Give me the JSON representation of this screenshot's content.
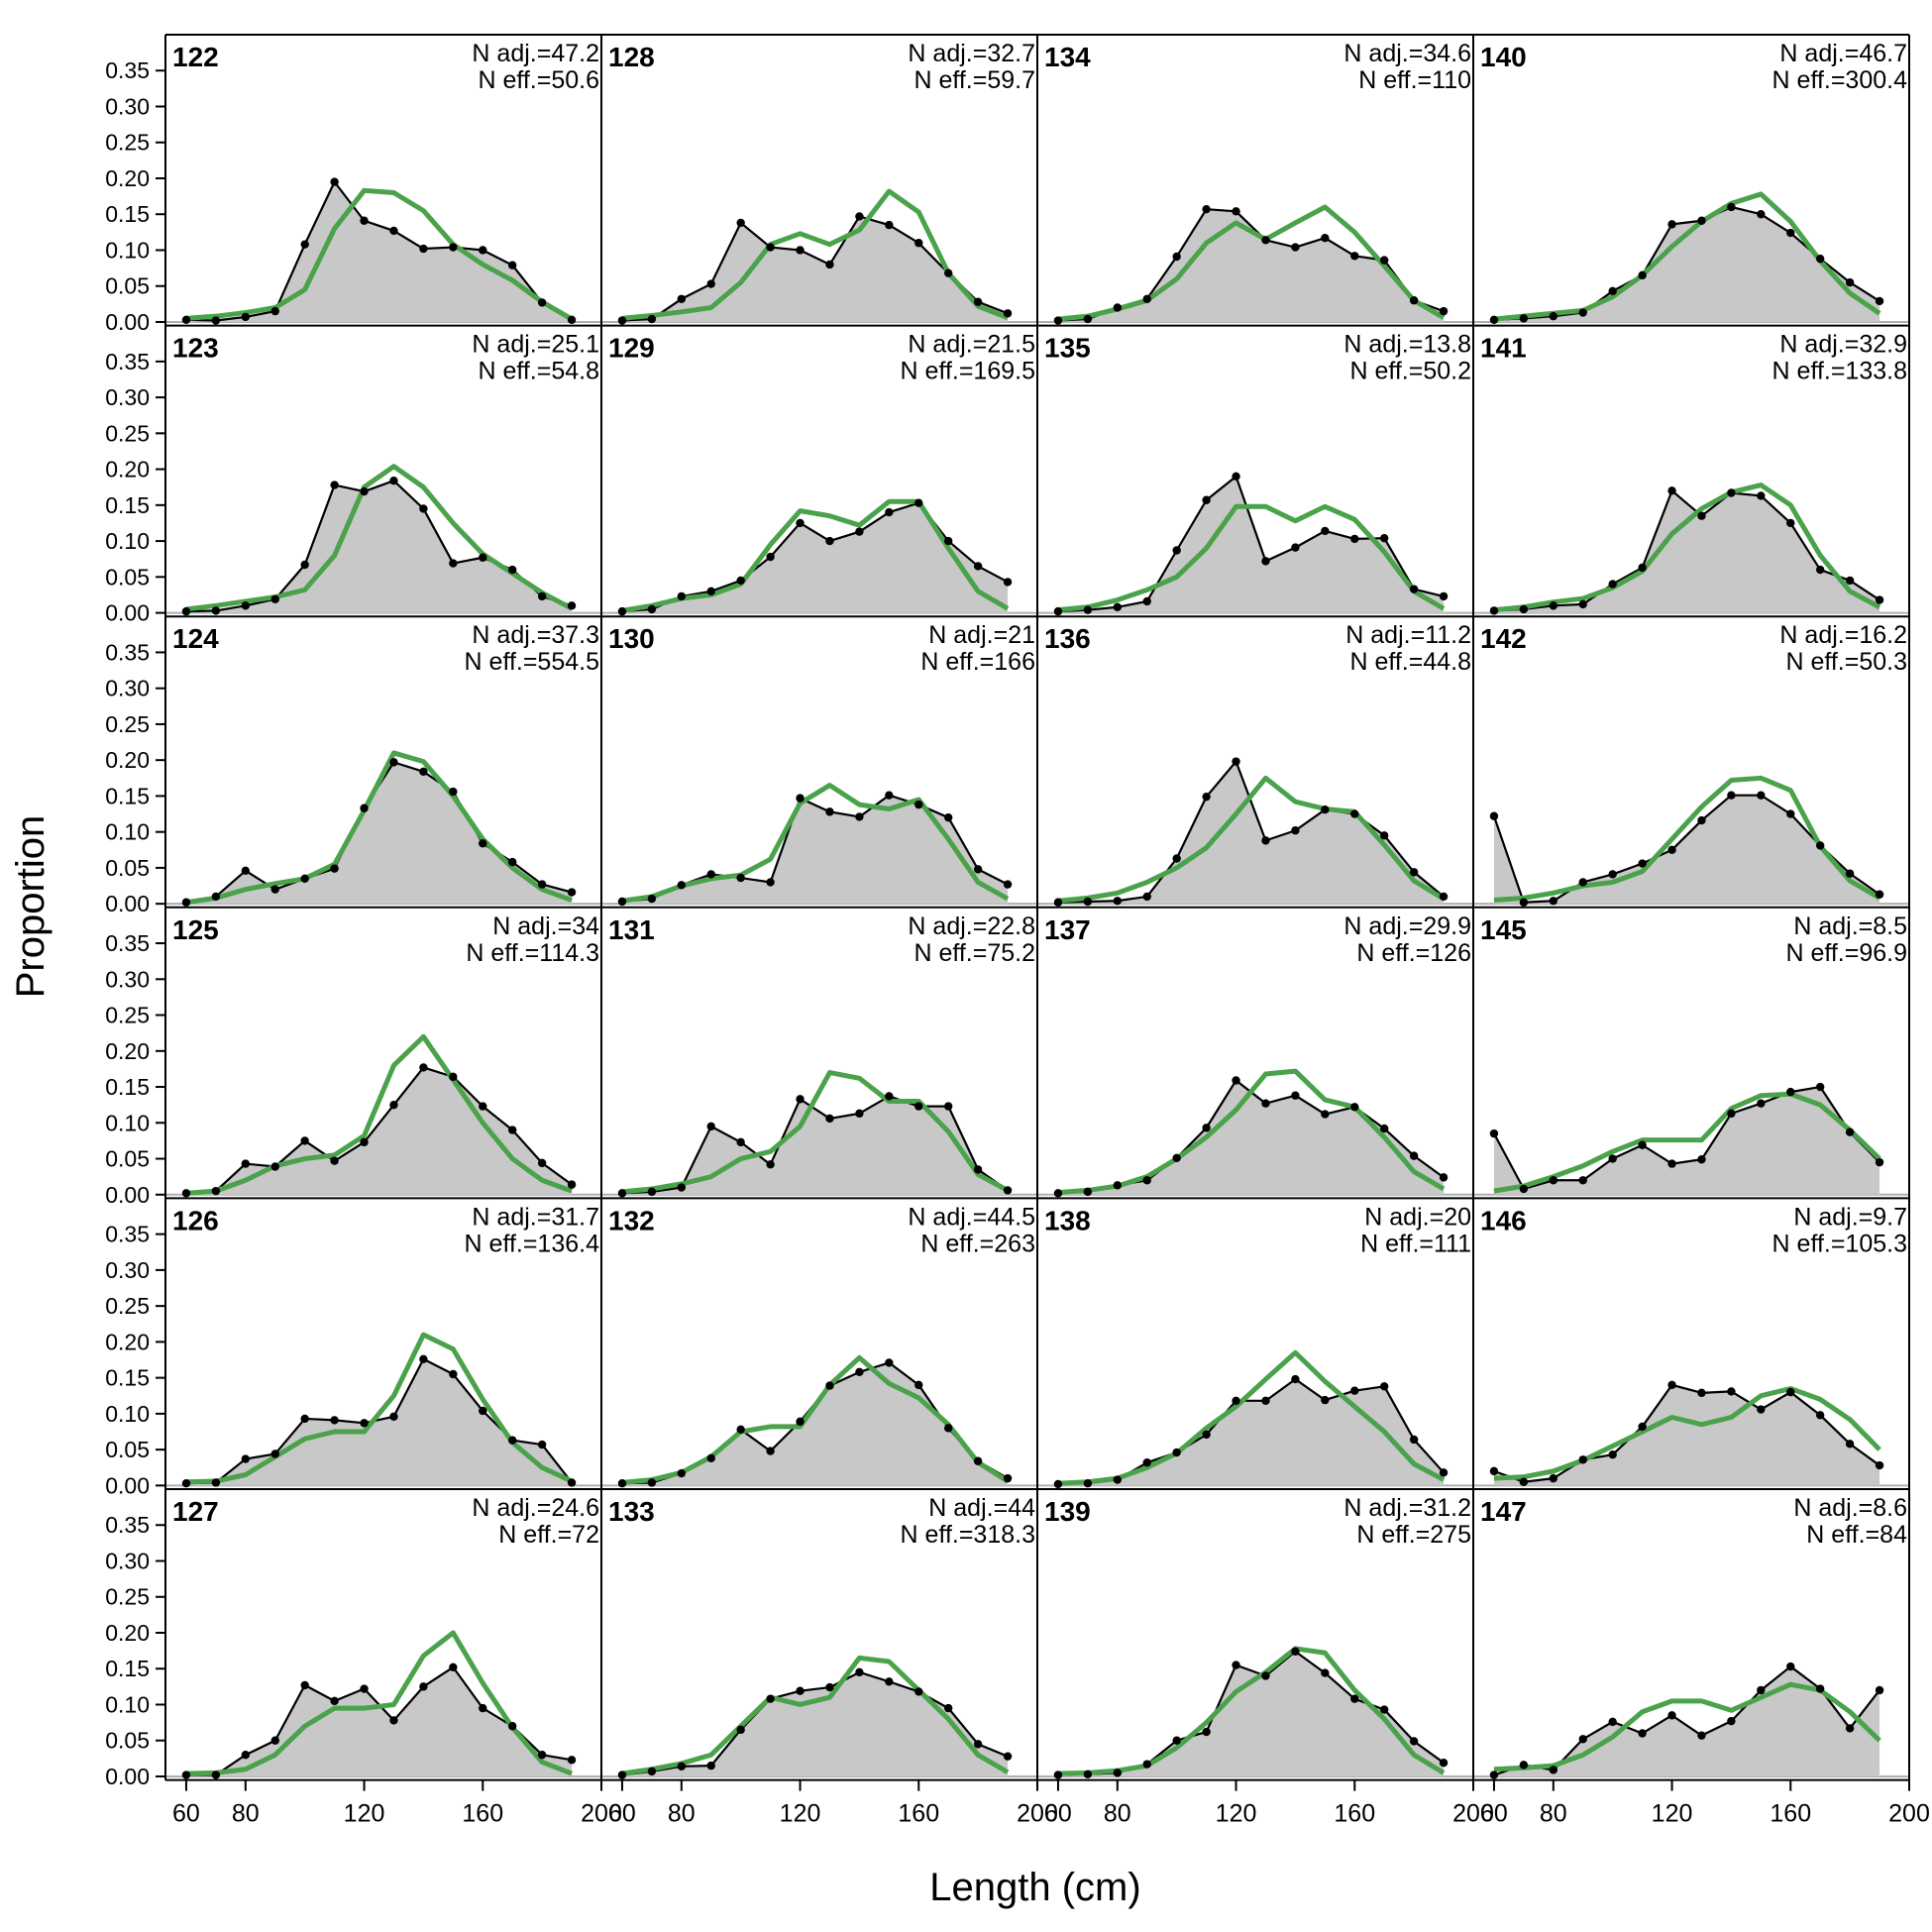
{
  "chart_data": {
    "type": "area",
    "xlabel": "Length (cm)",
    "ylabel": "Proportion",
    "xlim": [
      53,
      200
    ],
    "ylim": [
      -0.005,
      0.4
    ],
    "x_ticks": [
      60,
      80,
      120,
      160,
      200
    ],
    "y_ticks": [
      "0.00",
      "0.05",
      "0.10",
      "0.15",
      "0.20",
      "0.25",
      "0.30",
      "0.35"
    ],
    "x": [
      60,
      70,
      80,
      90,
      100,
      110,
      120,
      130,
      140,
      150,
      160,
      170,
      180,
      190
    ],
    "colors": {
      "observed_fill": "#c8c8c8",
      "observed_line": "#000000",
      "expected_line": "#4aa24a",
      "zero_line": "#b0b0b0"
    },
    "panels": [
      {
        "id": "122",
        "n_adj": "N adj.=47.2",
        "n_eff": "N eff.=50.6",
        "observed": [
          0.003,
          0.002,
          0.007,
          0.015,
          0.108,
          0.195,
          0.141,
          0.127,
          0.102,
          0.104,
          0.1,
          0.079,
          0.027,
          0.003
        ],
        "expected": [
          0.005,
          0.008,
          0.013,
          0.02,
          0.045,
          0.13,
          0.183,
          0.18,
          0.155,
          0.108,
          0.08,
          0.058,
          0.028,
          0.004
        ]
      },
      {
        "id": "128",
        "n_adj": "N adj.=32.7",
        "n_eff": "N eff.=59.7",
        "observed": [
          0.002,
          0.004,
          0.032,
          0.053,
          0.138,
          0.104,
          0.1,
          0.08,
          0.147,
          0.135,
          0.11,
          0.068,
          0.028,
          0.012
        ],
        "expected": [
          0.005,
          0.009,
          0.014,
          0.02,
          0.055,
          0.108,
          0.123,
          0.108,
          0.128,
          0.182,
          0.153,
          0.068,
          0.022,
          0.006
        ]
      },
      {
        "id": "134",
        "n_adj": "N adj.=34.6",
        "n_eff": "N eff.=110",
        "observed": [
          0.002,
          0.004,
          0.02,
          0.032,
          0.091,
          0.157,
          0.154,
          0.114,
          0.104,
          0.117,
          0.092,
          0.086,
          0.03,
          0.015
        ],
        "expected": [
          0.004,
          0.008,
          0.018,
          0.03,
          0.06,
          0.11,
          0.138,
          0.115,
          0.138,
          0.16,
          0.125,
          0.078,
          0.03,
          0.006
        ]
      },
      {
        "id": "140",
        "n_adj": "N adj.=46.7",
        "n_eff": "N eff.=300.4",
        "observed": [
          0.003,
          0.005,
          0.008,
          0.013,
          0.043,
          0.065,
          0.136,
          0.141,
          0.16,
          0.15,
          0.124,
          0.088,
          0.055,
          0.029
        ],
        "expected": [
          0.004,
          0.008,
          0.012,
          0.016,
          0.035,
          0.065,
          0.105,
          0.14,
          0.165,
          0.178,
          0.14,
          0.085,
          0.04,
          0.012
        ]
      },
      {
        "id": "123",
        "n_adj": "N adj.=25.1",
        "n_eff": "N eff.=54.8",
        "observed": [
          0.002,
          0.003,
          0.01,
          0.019,
          0.067,
          0.178,
          0.169,
          0.184,
          0.145,
          0.069,
          0.077,
          0.06,
          0.023,
          0.01
        ],
        "expected": [
          0.005,
          0.01,
          0.016,
          0.022,
          0.032,
          0.08,
          0.175,
          0.204,
          0.175,
          0.125,
          0.082,
          0.055,
          0.028,
          0.006
        ]
      },
      {
        "id": "129",
        "n_adj": "N adj.=21.5",
        "n_eff": "N eff.=169.5",
        "observed": [
          0.002,
          0.005,
          0.023,
          0.03,
          0.045,
          0.078,
          0.125,
          0.1,
          0.113,
          0.14,
          0.153,
          0.1,
          0.065,
          0.043
        ],
        "expected": [
          0.003,
          0.01,
          0.02,
          0.025,
          0.04,
          0.095,
          0.142,
          0.135,
          0.122,
          0.155,
          0.155,
          0.09,
          0.03,
          0.006
        ]
      },
      {
        "id": "135",
        "n_adj": "N adj.=13.8",
        "n_eff": "N eff.=50.2",
        "observed": [
          0.002,
          0.004,
          0.008,
          0.016,
          0.087,
          0.157,
          0.19,
          0.072,
          0.091,
          0.114,
          0.103,
          0.104,
          0.033,
          0.023
        ],
        "expected": [
          0.004,
          0.008,
          0.018,
          0.032,
          0.05,
          0.09,
          0.148,
          0.148,
          0.128,
          0.148,
          0.13,
          0.085,
          0.03,
          0.006
        ]
      },
      {
        "id": "141",
        "n_adj": "N adj.=32.9",
        "n_eff": "N eff.=133.8",
        "observed": [
          0.003,
          0.005,
          0.01,
          0.012,
          0.04,
          0.063,
          0.17,
          0.135,
          0.167,
          0.163,
          0.125,
          0.06,
          0.045,
          0.018
        ],
        "expected": [
          0.004,
          0.008,
          0.015,
          0.02,
          0.035,
          0.058,
          0.11,
          0.145,
          0.168,
          0.178,
          0.15,
          0.08,
          0.03,
          0.008
        ]
      },
      {
        "id": "124",
        "n_adj": "N adj.=37.3",
        "n_eff": "N eff.=554.5",
        "observed": [
          0.002,
          0.01,
          0.046,
          0.02,
          0.035,
          0.049,
          0.133,
          0.197,
          0.184,
          0.156,
          0.084,
          0.058,
          0.027,
          0.016
        ],
        "expected": [
          0.002,
          0.008,
          0.02,
          0.028,
          0.035,
          0.055,
          0.13,
          0.21,
          0.198,
          0.15,
          0.09,
          0.05,
          0.02,
          0.005
        ]
      },
      {
        "id": "130",
        "n_adj": "N adj.=21",
        "n_eff": "N eff.=166",
        "observed": [
          0.003,
          0.007,
          0.026,
          0.041,
          0.036,
          0.03,
          0.147,
          0.128,
          0.121,
          0.151,
          0.138,
          0.12,
          0.048,
          0.027
        ],
        "expected": [
          0.004,
          0.01,
          0.025,
          0.035,
          0.04,
          0.062,
          0.14,
          0.165,
          0.138,
          0.132,
          0.145,
          0.09,
          0.03,
          0.007
        ]
      },
      {
        "id": "136",
        "n_adj": "N adj.=11.2",
        "n_eff": "N eff.=44.8",
        "observed": [
          0.002,
          0.003,
          0.004,
          0.01,
          0.063,
          0.149,
          0.198,
          0.088,
          0.102,
          0.131,
          0.125,
          0.095,
          0.044,
          0.01
        ],
        "expected": [
          0.004,
          0.008,
          0.015,
          0.03,
          0.05,
          0.078,
          0.125,
          0.175,
          0.142,
          0.132,
          0.128,
          0.082,
          0.032,
          0.007
        ]
      },
      {
        "id": "142",
        "n_adj": "N adj.=16.2",
        "n_eff": "N eff.=50.3",
        "observed": [
          0.122,
          0.002,
          0.004,
          0.03,
          0.041,
          0.056,
          0.075,
          0.116,
          0.151,
          0.151,
          0.125,
          0.081,
          0.042,
          0.013
        ],
        "expected": [
          0.005,
          0.008,
          0.015,
          0.025,
          0.03,
          0.045,
          0.09,
          0.135,
          0.172,
          0.175,
          0.158,
          0.08,
          0.032,
          0.008
        ]
      },
      {
        "id": "125",
        "n_adj": "N adj.=34",
        "n_eff": "N eff.=114.3",
        "observed": [
          0.002,
          0.005,
          0.043,
          0.039,
          0.075,
          0.047,
          0.073,
          0.125,
          0.177,
          0.164,
          0.123,
          0.09,
          0.044,
          0.014
        ],
        "expected": [
          0.002,
          0.005,
          0.02,
          0.04,
          0.05,
          0.055,
          0.082,
          0.18,
          0.22,
          0.16,
          0.1,
          0.05,
          0.02,
          0.005
        ]
      },
      {
        "id": "131",
        "n_adj": "N adj.=22.8",
        "n_eff": "N eff.=75.2",
        "observed": [
          0.002,
          0.004,
          0.01,
          0.095,
          0.073,
          0.042,
          0.133,
          0.106,
          0.113,
          0.137,
          0.123,
          0.123,
          0.035,
          0.006
        ],
        "expected": [
          0.004,
          0.008,
          0.015,
          0.025,
          0.05,
          0.06,
          0.095,
          0.17,
          0.162,
          0.13,
          0.13,
          0.088,
          0.028,
          0.006
        ]
      },
      {
        "id": "137",
        "n_adj": "N adj.=29.9",
        "n_eff": "N eff.=126",
        "observed": [
          0.002,
          0.004,
          0.013,
          0.02,
          0.051,
          0.093,
          0.159,
          0.127,
          0.138,
          0.112,
          0.122,
          0.092,
          0.054,
          0.024
        ],
        "expected": [
          0.003,
          0.006,
          0.012,
          0.025,
          0.05,
          0.08,
          0.118,
          0.168,
          0.172,
          0.132,
          0.122,
          0.08,
          0.032,
          0.008
        ]
      },
      {
        "id": "145",
        "n_adj": "N adj.=8.5",
        "n_eff": "N eff.=96.9",
        "observed": [
          0.085,
          0.008,
          0.02,
          0.02,
          0.05,
          0.069,
          0.043,
          0.049,
          0.113,
          0.127,
          0.143,
          0.15,
          0.087,
          0.045
        ],
        "expected": [
          0.005,
          0.012,
          0.025,
          0.04,
          0.06,
          0.076,
          0.076,
          0.076,
          0.12,
          0.138,
          0.14,
          0.125,
          0.09,
          0.05
        ]
      },
      {
        "id": "126",
        "n_adj": "N adj.=31.7",
        "n_eff": "N eff.=136.4",
        "observed": [
          0.003,
          0.004,
          0.037,
          0.044,
          0.093,
          0.091,
          0.087,
          0.096,
          0.176,
          0.155,
          0.104,
          0.063,
          0.057,
          0.004
        ],
        "expected": [
          0.005,
          0.006,
          0.015,
          0.04,
          0.065,
          0.075,
          0.075,
          0.125,
          0.21,
          0.19,
          0.12,
          0.06,
          0.025,
          0.006
        ]
      },
      {
        "id": "132",
        "n_adj": "N adj.=44.5",
        "n_eff": "N eff.=263",
        "observed": [
          0.003,
          0.004,
          0.017,
          0.038,
          0.078,
          0.048,
          0.089,
          0.139,
          0.158,
          0.171,
          0.14,
          0.08,
          0.034,
          0.01
        ],
        "expected": [
          0.004,
          0.008,
          0.018,
          0.04,
          0.075,
          0.082,
          0.082,
          0.14,
          0.178,
          0.142,
          0.122,
          0.085,
          0.032,
          0.006
        ]
      },
      {
        "id": "138",
        "n_adj": "N adj.=20",
        "n_eff": "N eff.=111",
        "observed": [
          0.002,
          0.003,
          0.008,
          0.032,
          0.046,
          0.071,
          0.118,
          0.118,
          0.148,
          0.119,
          0.132,
          0.138,
          0.064,
          0.018
        ],
        "expected": [
          0.003,
          0.005,
          0.01,
          0.025,
          0.045,
          0.08,
          0.11,
          0.148,
          0.185,
          0.145,
          0.11,
          0.075,
          0.03,
          0.008
        ]
      },
      {
        "id": "146",
        "n_adj": "N adj.=9.7",
        "n_eff": "N eff.=105.3",
        "observed": [
          0.02,
          0.005,
          0.01,
          0.036,
          0.043,
          0.082,
          0.14,
          0.129,
          0.131,
          0.106,
          0.13,
          0.098,
          0.058,
          0.028
        ],
        "expected": [
          0.01,
          0.012,
          0.02,
          0.035,
          0.055,
          0.075,
          0.095,
          0.085,
          0.095,
          0.125,
          0.135,
          0.12,
          0.092,
          0.05
        ]
      },
      {
        "id": "127",
        "n_adj": "N adj.=24.6",
        "n_eff": "N eff.=72",
        "observed": [
          0.002,
          0.002,
          0.03,
          0.05,
          0.127,
          0.105,
          0.122,
          0.078,
          0.125,
          0.152,
          0.095,
          0.07,
          0.03,
          0.023
        ],
        "expected": [
          0.004,
          0.005,
          0.01,
          0.03,
          0.07,
          0.095,
          0.095,
          0.1,
          0.168,
          0.2,
          0.13,
          0.068,
          0.02,
          0.004
        ]
      },
      {
        "id": "133",
        "n_adj": "N adj.=44",
        "n_eff": "N eff.=318.3",
        "observed": [
          0.002,
          0.007,
          0.014,
          0.015,
          0.065,
          0.108,
          0.119,
          0.124,
          0.145,
          0.132,
          0.118,
          0.095,
          0.045,
          0.028
        ],
        "expected": [
          0.004,
          0.01,
          0.018,
          0.03,
          0.07,
          0.11,
          0.1,
          0.11,
          0.165,
          0.16,
          0.12,
          0.08,
          0.03,
          0.006
        ]
      },
      {
        "id": "139",
        "n_adj": "N adj.=31.2",
        "n_eff": "N eff.=275",
        "observed": [
          0.002,
          0.003,
          0.005,
          0.017,
          0.05,
          0.062,
          0.155,
          0.14,
          0.174,
          0.144,
          0.108,
          0.093,
          0.049,
          0.019
        ],
        "expected": [
          0.004,
          0.005,
          0.008,
          0.015,
          0.04,
          0.075,
          0.118,
          0.145,
          0.178,
          0.172,
          0.12,
          0.08,
          0.03,
          0.005
        ]
      },
      {
        "id": "147",
        "n_adj": "N adj.=8.6",
        "n_eff": "N eff.=84",
        "observed": [
          0.002,
          0.016,
          0.009,
          0.052,
          0.076,
          0.06,
          0.085,
          0.057,
          0.077,
          0.12,
          0.153,
          0.122,
          0.067,
          0.12
        ],
        "expected": [
          0.01,
          0.012,
          0.015,
          0.03,
          0.055,
          0.09,
          0.105,
          0.105,
          0.092,
          0.11,
          0.128,
          0.12,
          0.09,
          0.05
        ]
      }
    ]
  }
}
